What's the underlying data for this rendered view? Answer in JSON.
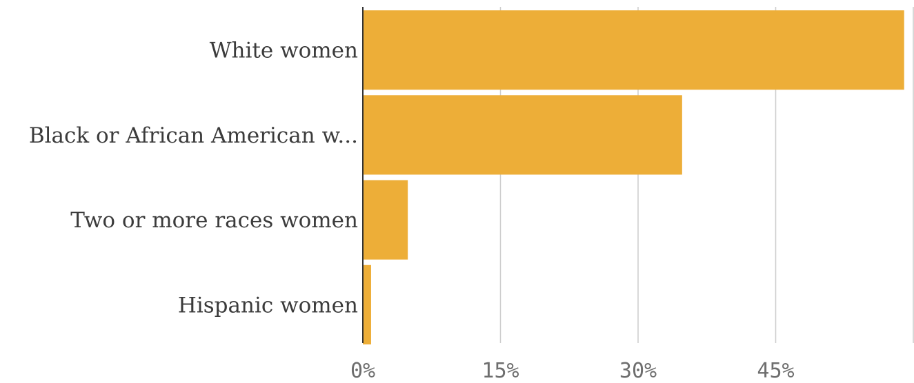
{
  "chart_data": {
    "type": "bar",
    "orientation": "horizontal",
    "categories": [
      "White women",
      "Black or African American w...",
      "Two or more races women",
      "Hispanic women"
    ],
    "values": [
      59,
      34.8,
      4.9,
      0.9
    ],
    "x_ticks": [
      "0%",
      "15%",
      "30%",
      "45%"
    ],
    "x_tick_values": [
      0,
      15,
      30,
      45
    ],
    "xlim": [
      0,
      60
    ],
    "grid": true,
    "bar_color": "#EDAE38"
  }
}
